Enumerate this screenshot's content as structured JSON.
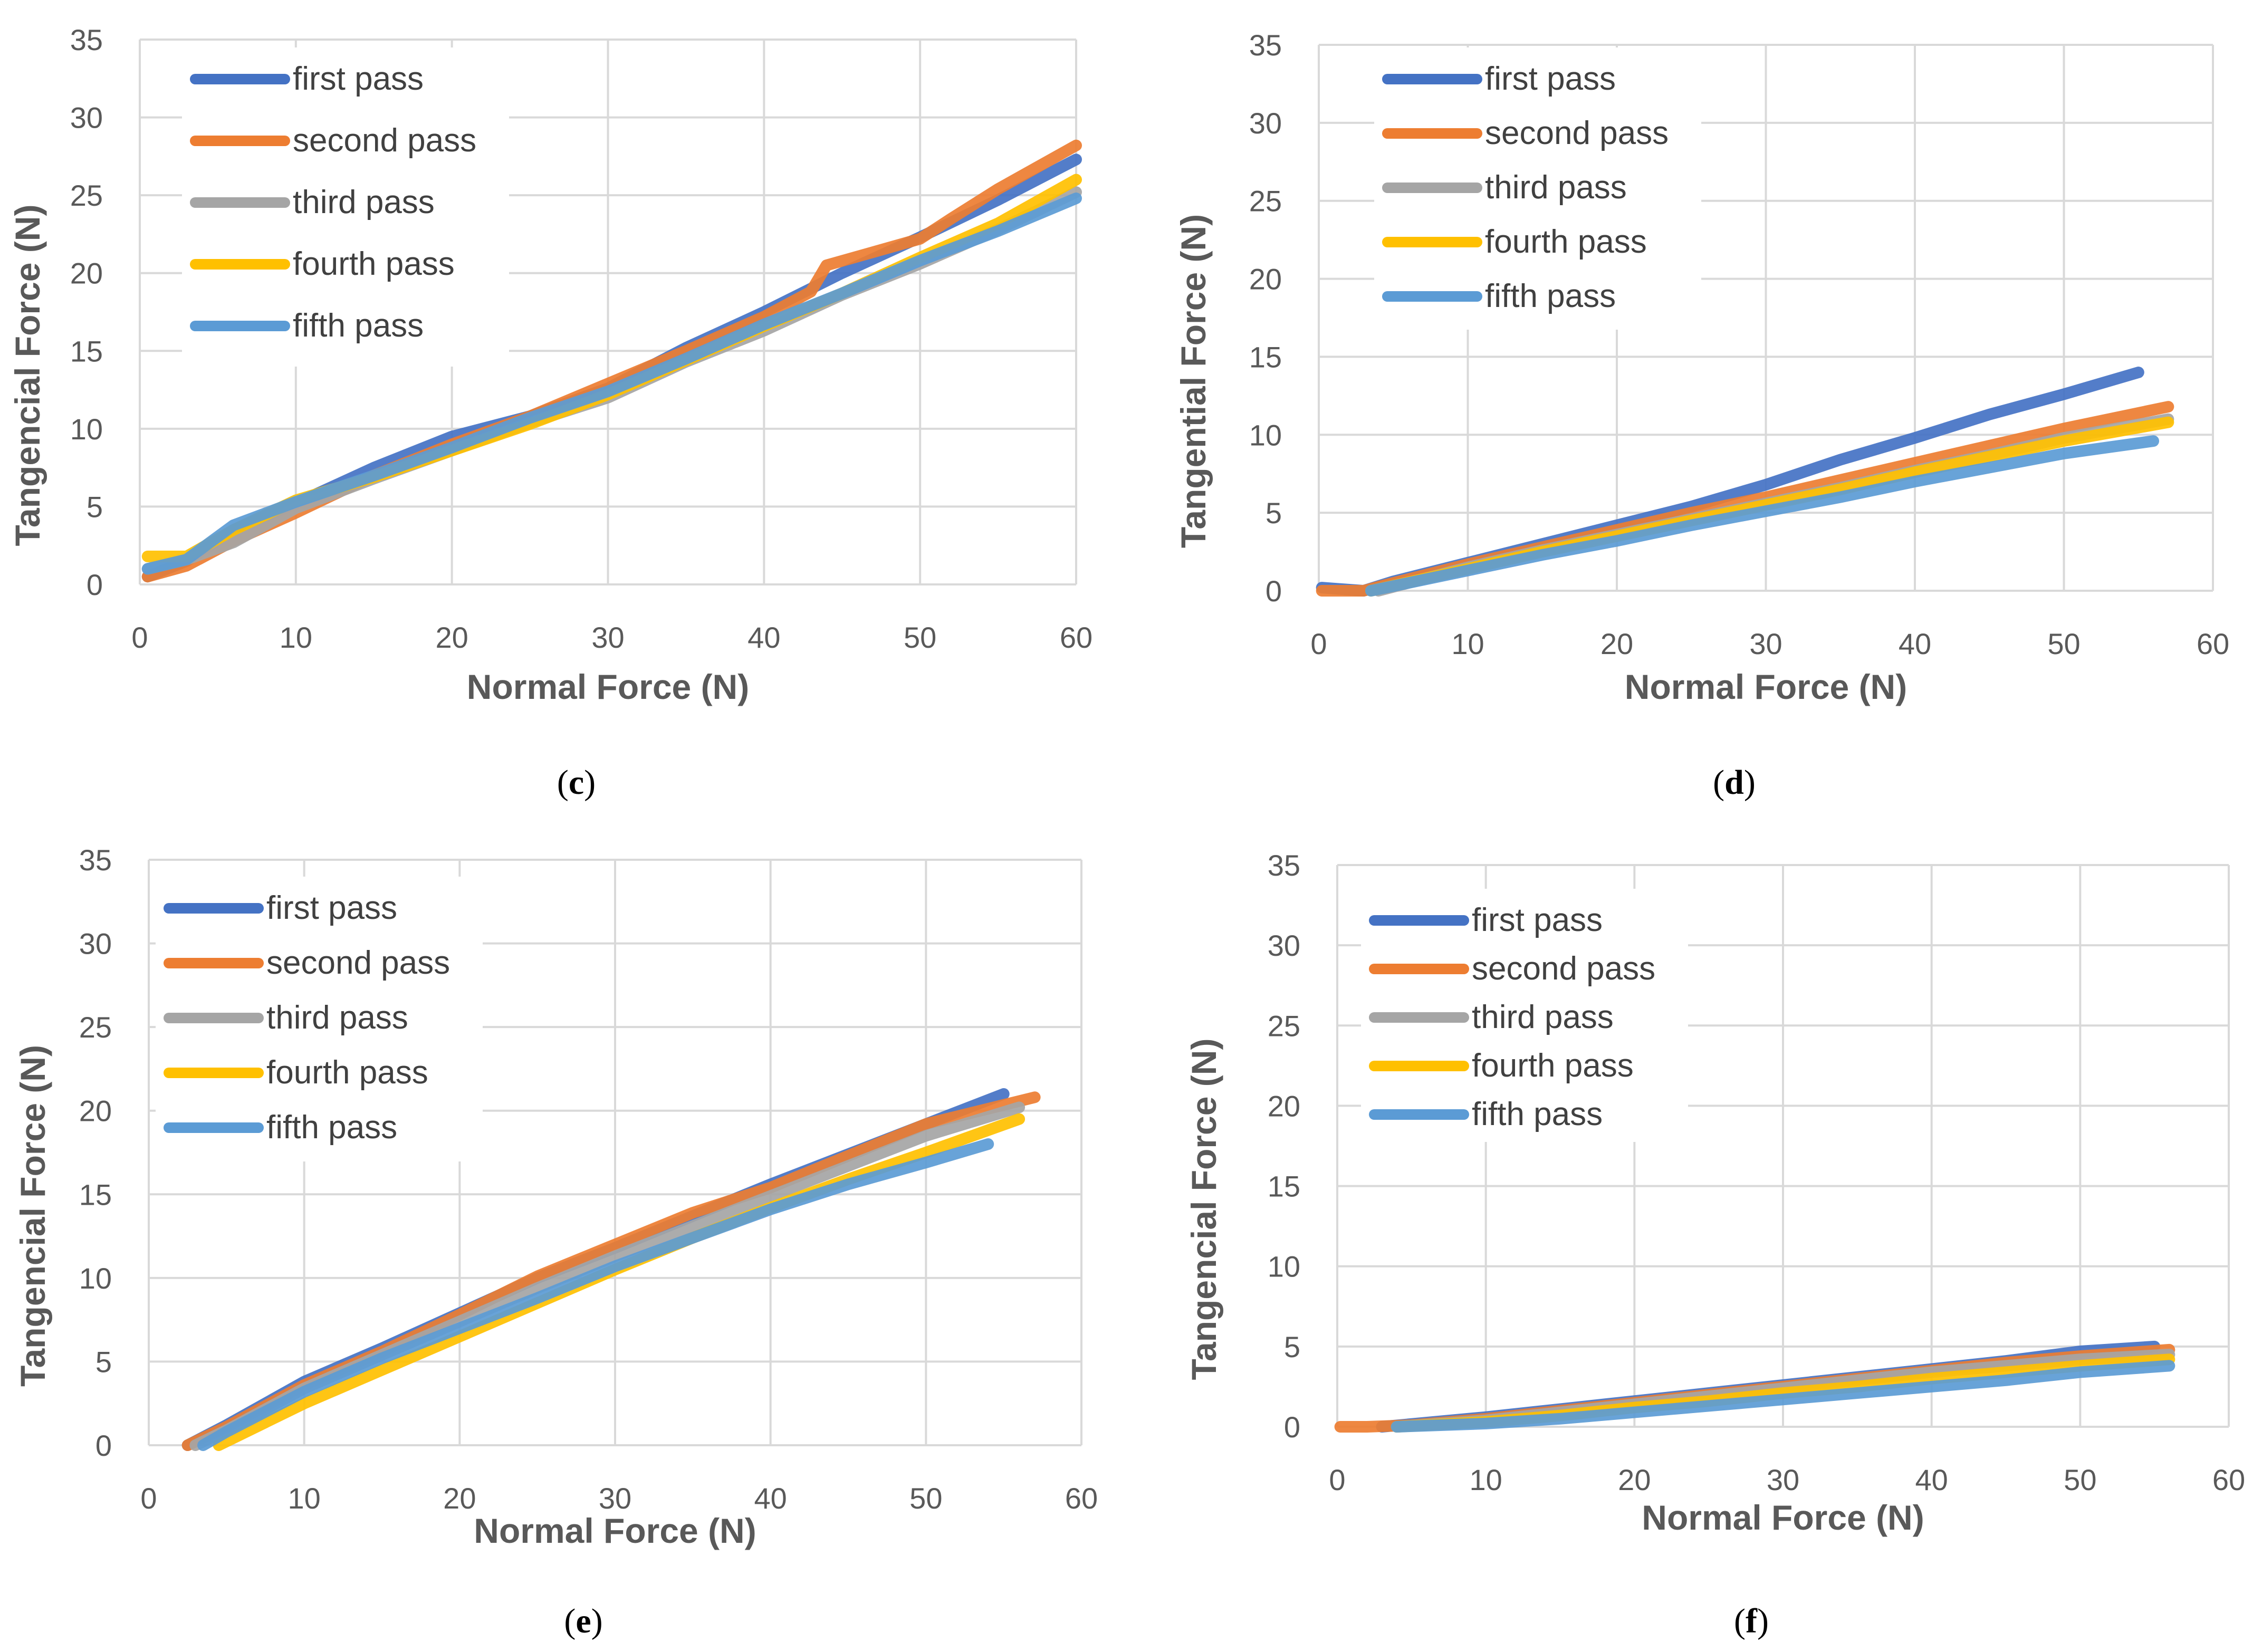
{
  "chart_data": [
    {
      "type": "line",
      "panel_label": "(c)",
      "panel_letter": "c",
      "xlabel": "Normal Force (N)",
      "ylabel": "Tangencial Force (N)",
      "xlim": [
        0,
        60
      ],
      "ylim": [
        0,
        35
      ],
      "xticks": [
        "0",
        "10",
        "20",
        "30",
        "40",
        "50",
        "60"
      ],
      "yticks": [
        "0",
        "5",
        "10",
        "15",
        "20",
        "25",
        "30",
        "35"
      ],
      "grid": true,
      "legend": "top-left",
      "series": [
        {
          "name": "first pass",
          "color": "#4472C4",
          "x": [
            0.5,
            3,
            6,
            10,
            15,
            20,
            25,
            30,
            35,
            40,
            45,
            50,
            55,
            60
          ],
          "y": [
            0.5,
            1.5,
            3.5,
            5.2,
            7.5,
            9.5,
            10.8,
            12.6,
            15.2,
            17.5,
            20.0,
            22.3,
            24.7,
            27.3
          ]
        },
        {
          "name": "second pass",
          "color": "#ED7D31",
          "x": [
            0.5,
            3,
            6,
            10,
            15,
            20,
            25,
            30,
            35,
            40,
            43,
            44,
            50,
            52,
            55,
            60
          ],
          "y": [
            0.5,
            1.2,
            2.8,
            4.6,
            7.0,
            9.0,
            10.8,
            12.9,
            15.0,
            17.2,
            18.8,
            20.5,
            22.2,
            23.5,
            25.4,
            28.2
          ]
        },
        {
          "name": "third pass",
          "color": "#A5A5A5",
          "x": [
            0.5,
            3,
            6,
            10,
            15,
            20,
            25,
            30,
            35,
            40,
            45,
            50,
            55,
            60
          ],
          "y": [
            1.0,
            1.6,
            2.7,
            4.9,
            6.8,
            8.6,
            10.4,
            12.0,
            14.3,
            16.3,
            18.6,
            20.6,
            22.8,
            25.2
          ]
        },
        {
          "name": "fourth pass",
          "color": "#FFC000",
          "x": [
            0.5,
            3,
            6,
            10,
            15,
            20,
            25,
            30,
            35,
            40,
            45,
            50,
            55,
            60
          ],
          "y": [
            1.8,
            1.8,
            3.5,
            5.4,
            6.9,
            8.6,
            10.3,
            12.2,
            14.4,
            16.6,
            18.7,
            21.0,
            23.2,
            26.0
          ]
        },
        {
          "name": "fifth pass",
          "color": "#5B9BD5",
          "x": [
            0.5,
            3,
            6,
            10,
            15,
            20,
            25,
            30,
            35,
            40,
            45,
            50,
            55,
            60
          ],
          "y": [
            1.0,
            1.6,
            3.8,
            5.3,
            7.0,
            8.8,
            10.7,
            12.4,
            14.5,
            16.7,
            18.7,
            20.8,
            22.7,
            24.8
          ]
        }
      ]
    },
    {
      "type": "line",
      "panel_label": "(d)",
      "panel_letter": "d",
      "xlabel": "Normal Force (N)",
      "ylabel": "Tangential Force (N)",
      "xlim": [
        0,
        60
      ],
      "ylim": [
        0,
        35
      ],
      "xticks": [
        "0",
        "10",
        "20",
        "30",
        "40",
        "50",
        "60"
      ],
      "yticks": [
        "0",
        "5",
        "10",
        "15",
        "20",
        "25",
        "30",
        "35"
      ],
      "grid": true,
      "legend": "top-left",
      "series": [
        {
          "name": "first pass",
          "color": "#4472C4",
          "x": [
            0.2,
            3,
            5,
            10,
            15,
            20,
            25,
            30,
            35,
            40,
            45,
            50,
            55
          ],
          "y": [
            0.2,
            0.0,
            0.6,
            1.8,
            3.0,
            4.2,
            5.4,
            6.8,
            8.4,
            9.8,
            11.3,
            12.6,
            14.0
          ]
        },
        {
          "name": "second pass",
          "color": "#ED7D31",
          "x": [
            0.2,
            3,
            5,
            10,
            15,
            20,
            25,
            30,
            35,
            40,
            45,
            50,
            57
          ],
          "y": [
            0.0,
            0.0,
            0.5,
            1.7,
            2.8,
            3.9,
            5.0,
            6.0,
            7.1,
            8.2,
            9.3,
            10.4,
            11.8
          ]
        },
        {
          "name": "third pass",
          "color": "#A5A5A5",
          "x": [
            4,
            10,
            15,
            20,
            25,
            30,
            35,
            40,
            45,
            50,
            57
          ],
          "y": [
            0.0,
            1.5,
            2.6,
            3.6,
            4.6,
            5.6,
            6.6,
            7.7,
            8.7,
            9.8,
            11.0
          ]
        },
        {
          "name": "fourth pass",
          "color": "#FFC000",
          "x": [
            3.5,
            10,
            15,
            20,
            25,
            30,
            35,
            40,
            45,
            50,
            57
          ],
          "y": [
            0.0,
            1.4,
            2.5,
            3.5,
            4.5,
            5.5,
            6.5,
            7.6,
            8.6,
            9.6,
            10.8
          ]
        },
        {
          "name": "fifth pass",
          "color": "#5B9BD5",
          "x": [
            3.5,
            10,
            15,
            20,
            25,
            30,
            35,
            40,
            45,
            50,
            56
          ],
          "y": [
            0.0,
            1.3,
            2.3,
            3.2,
            4.2,
            5.1,
            6.0,
            7.0,
            7.9,
            8.8,
            9.6
          ]
        }
      ]
    },
    {
      "type": "line",
      "panel_label": "(e)",
      "panel_letter": "e",
      "xlabel": "Normal Force (N)",
      "ylabel": "Tangencial Force (N)",
      "xlim": [
        0,
        60
      ],
      "ylim": [
        0,
        35
      ],
      "xticks": [
        "0",
        "10",
        "20",
        "30",
        "40",
        "50",
        "60"
      ],
      "yticks": [
        "0",
        "5",
        "10",
        "15",
        "20",
        "25",
        "30",
        "35"
      ],
      "grid": true,
      "legend": "top-left",
      "series": [
        {
          "name": "first pass",
          "color": "#4472C4",
          "x": [
            2.5,
            5,
            10,
            15,
            20,
            25,
            30,
            35,
            40,
            45,
            50,
            55
          ],
          "y": [
            0.0,
            1.2,
            3.8,
            5.8,
            7.9,
            10.0,
            11.8,
            13.7,
            15.6,
            17.4,
            19.2,
            21.0
          ]
        },
        {
          "name": "second pass",
          "color": "#ED7D31",
          "x": [
            2.5,
            5,
            10,
            15,
            20,
            25,
            30,
            35,
            40,
            45,
            50,
            57
          ],
          "y": [
            0.0,
            1.1,
            3.6,
            5.6,
            7.8,
            10.1,
            12.0,
            13.9,
            15.4,
            17.3,
            19.2,
            20.8
          ]
        },
        {
          "name": "third pass",
          "color": "#A5A5A5",
          "x": [
            3,
            5,
            10,
            15,
            20,
            25,
            30,
            35,
            40,
            45,
            50,
            56
          ],
          "y": [
            0.0,
            0.9,
            3.4,
            5.4,
            7.4,
            9.4,
            11.3,
            13.1,
            14.9,
            16.7,
            18.5,
            20.2
          ]
        },
        {
          "name": "fourth pass",
          "color": "#FFC000",
          "x": [
            4.5,
            10,
            15,
            20,
            25,
            30,
            35,
            40,
            45,
            50,
            56
          ],
          "y": [
            0.0,
            2.5,
            4.5,
            6.5,
            8.5,
            10.5,
            12.4,
            14.2,
            15.9,
            17.5,
            19.5
          ]
        },
        {
          "name": "fifth pass",
          "color": "#5B9BD5",
          "x": [
            3.5,
            5,
            10,
            15,
            20,
            25,
            30,
            35,
            40,
            45,
            50,
            54
          ],
          "y": [
            0.0,
            0.8,
            3.2,
            5.2,
            7.0,
            8.8,
            10.7,
            12.4,
            14.1,
            15.6,
            16.9,
            18.0
          ]
        }
      ]
    },
    {
      "type": "line",
      "panel_label": "(f)",
      "panel_letter": "f",
      "xlabel": "Normal Force (N)",
      "ylabel": "Tangencial Force (N)",
      "xlim": [
        0,
        60
      ],
      "ylim": [
        0,
        35
      ],
      "xticks": [
        "0",
        "10",
        "20",
        "30",
        "40",
        "50",
        "60"
      ],
      "yticks": [
        "0",
        "5",
        "10",
        "15",
        "20",
        "25",
        "30",
        "35"
      ],
      "grid": true,
      "legend": "top-left",
      "series": [
        {
          "name": "first pass",
          "color": "#4472C4",
          "x": [
            3,
            10,
            15,
            20,
            25,
            30,
            35,
            40,
            45,
            50,
            55
          ],
          "y": [
            0.0,
            0.6,
            1.1,
            1.6,
            2.1,
            2.6,
            3.1,
            3.6,
            4.1,
            4.7,
            5.0
          ]
        },
        {
          "name": "second pass",
          "color": "#ED7D31",
          "x": [
            0.2,
            2,
            5,
            10,
            15,
            20,
            25,
            30,
            35,
            40,
            45,
            50,
            56
          ],
          "y": [
            0.0,
            0.0,
            0.1,
            0.5,
            1.0,
            1.5,
            2.0,
            2.5,
            3.0,
            3.5,
            4.0,
            4.4,
            4.8
          ]
        },
        {
          "name": "third pass",
          "color": "#A5A5A5",
          "x": [
            4,
            10,
            15,
            20,
            25,
            30,
            35,
            40,
            45,
            50,
            56
          ],
          "y": [
            0.0,
            0.4,
            0.9,
            1.4,
            1.9,
            2.4,
            2.9,
            3.4,
            3.8,
            4.2,
            4.5
          ]
        },
        {
          "name": "fourth pass",
          "color": "#FFC000",
          "x": [
            4,
            10,
            15,
            20,
            25,
            30,
            35,
            40,
            45,
            50,
            56
          ],
          "y": [
            0.0,
            0.3,
            0.7,
            1.2,
            1.6,
            2.1,
            2.5,
            3.0,
            3.4,
            3.8,
            4.2
          ]
        },
        {
          "name": "fifth pass",
          "color": "#5B9BD5",
          "x": [
            4,
            10,
            15,
            20,
            25,
            30,
            35,
            40,
            45,
            50,
            56
          ],
          "y": [
            0.0,
            0.2,
            0.5,
            0.9,
            1.3,
            1.7,
            2.1,
            2.5,
            2.9,
            3.4,
            3.8
          ]
        }
      ]
    }
  ]
}
